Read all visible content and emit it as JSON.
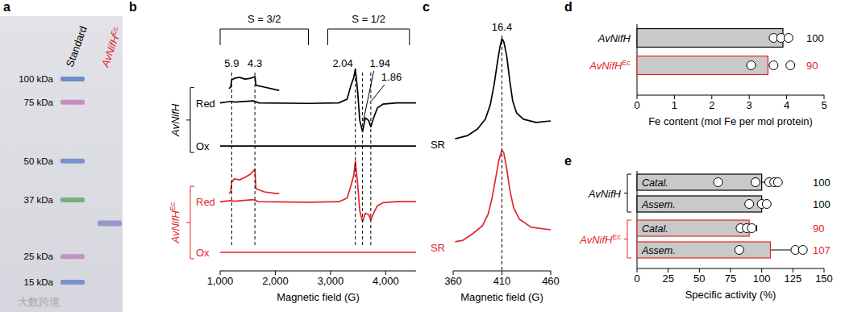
{
  "watermark": "大数跨境",
  "chart_data": [
    {
      "type": "gel",
      "panel": "a",
      "ylim": [
        0,
        1
      ],
      "tick_labels": false,
      "lanes": [
        {
          "text": "Standard",
          "color": "#000000"
        },
        {
          "text": "AvNifH",
          "sup": "Ec",
          "color": "#e3262b"
        }
      ],
      "markers": [
        {
          "label": "100 kDa",
          "rf": 0.218,
          "color": "#5b7fc6"
        },
        {
          "label": "75 kDa",
          "rf": 0.304,
          "color": "#c27cb9"
        },
        {
          "label": "50 kDa",
          "rf": 0.522,
          "color": "#6a86c8"
        },
        {
          "label": "37 kDa",
          "rf": 0.666,
          "color": "#6aa46c"
        },
        {
          "label": "25 kDa",
          "rf": 0.875,
          "color": "#c483bd"
        },
        {
          "label": "15 kDa",
          "rf": 0.97,
          "color": "#6a86c8"
        }
      ],
      "sample_band": {
        "rf": 0.752,
        "color": "#8d90cc"
      }
    },
    {
      "type": "line",
      "panel": "b",
      "x_label": "Magnetic field (G)",
      "xlim": [
        1000,
        4550
      ],
      "xticks": [
        {
          "value": 1000,
          "label": "1,000"
        },
        {
          "value": 2000,
          "label": "2,000"
        },
        {
          "value": 3000,
          "label": "3,000"
        },
        {
          "value": 4000,
          "label": "4,000"
        }
      ],
      "ylim": [
        0,
        100
      ],
      "tick_labels": "x",
      "brackets": [
        {
          "label": "S = 3/2",
          "from": 1000,
          "to": 2600
        },
        {
          "label": "S = 1/2",
          "from": 2950,
          "to": 4430
        }
      ],
      "g_values": [
        {
          "g": 5.9,
          "field": 1210
        },
        {
          "g": 4.3,
          "field": 1630
        },
        {
          "g": 2.04,
          "field": 3450
        },
        {
          "g": 1.94,
          "field": 3580
        },
        {
          "g": 1.86,
          "field": 3730
        }
      ],
      "samples": [
        {
          "name": {
            "text": "AvNifH"
          },
          "color": "#000000",
          "traces": [
            {
              "label": "Red",
              "x": [
                1000,
                1200,
                1260,
                1600,
                1700,
                2600,
                3150,
                3300,
                3370,
                3420,
                3450,
                3490,
                3530,
                3580,
                3630,
                3690,
                3730,
                3780,
                3850,
                3950,
                4200,
                4550
              ],
              "values": [
                67,
                67.6,
                67.3,
                67.8,
                67,
                66.8,
                67,
                68.5,
                74,
                77,
                80.5,
                72,
                60,
                55.5,
                61,
                60,
                57.5,
                61,
                65,
                66.5,
                67,
                67
              ]
            },
            {
              "label": "Ox",
              "x": [
                1000,
                4550
              ],
              "values": [
                49.8,
                49.8
              ]
            },
            {
              "x": [
                1160,
                1190,
                1210,
                1260,
                1350,
                1450,
                1550,
                1630,
                1650,
                1800,
                2000,
                2070
              ],
              "values": [
                72.7,
                73.3,
                76.2,
                76.8,
                77.2,
                76.5,
                76.8,
                77.5,
                74,
                73.3,
                72.3,
                72
              ]
            }
          ]
        },
        {
          "name": {
            "text": "AvNifH",
            "sup": "Ec"
          },
          "color": "#e3262b",
          "traces": [
            {
              "label": "Red",
              "x": [
                1000,
                1200,
                1260,
                1600,
                1700,
                2600,
                3150,
                3300,
                3370,
                3420,
                3450,
                3490,
                3530,
                3580,
                3630,
                3690,
                3730,
                3780,
                3850,
                3950,
                4200,
                4550
              ],
              "values": [
                27.6,
                28,
                27.8,
                28.4,
                27.6,
                27.4,
                27.6,
                29,
                34,
                38,
                43.7,
                35,
                24,
                19.6,
                23,
                22.5,
                20.3,
                23,
                26,
                27.2,
                27.6,
                27.6
              ]
            },
            {
              "label": "Ox",
              "x": [
                1000,
                4550
              ],
              "values": [
                7.4,
                7.4
              ]
            },
            {
              "x": [
                1160,
                1190,
                1210,
                1260,
                1350,
                1450,
                1550,
                1630,
                1650,
                1800,
                2000,
                2070
              ],
              "values": [
                30.9,
                31.5,
                35.4,
                36.7,
                36.3,
                37.3,
                38.6,
                40.5,
                32.8,
                31.5,
                30.9,
                30.9
              ]
            }
          ]
        }
      ]
    },
    {
      "type": "line",
      "panel": "c",
      "x_label": "Magnetic field (G)",
      "xlim": [
        360,
        460
      ],
      "xticks": [
        360,
        410,
        460
      ],
      "ylim": [
        0,
        100
      ],
      "tick_labels": "x",
      "g_values": [
        {
          "g": 16.4,
          "field": 410
        }
      ],
      "series": [
        {
          "label": "SR",
          "color": "#000000",
          "x": [
            362,
            375,
            385,
            393,
            398,
            402,
            405,
            408,
            410,
            412,
            415,
            418,
            421,
            425,
            432,
            445,
            460
          ],
          "values": [
            52.7,
            54,
            56.6,
            60.5,
            66.2,
            74.3,
            82.3,
            89.4,
            92.6,
            91.3,
            85.5,
            75.9,
            67.8,
            63,
            60.5,
            59.2,
            59.8
          ]
        },
        {
          "label": "SR",
          "color": "#e3262b",
          "x": [
            362,
            370,
            380,
            390,
            396,
            400,
            404,
            407,
            410,
            412,
            415,
            418,
            422,
            428,
            440,
            460
          ],
          "values": [
            11.6,
            12.2,
            14.8,
            18,
            22.8,
            29.3,
            37.9,
            44.4,
            48.2,
            46.9,
            40.5,
            32.5,
            25.1,
            20.6,
            17.4,
            16.4
          ]
        }
      ]
    },
    {
      "type": "bar",
      "panel": "d",
      "orientation": "horizontal",
      "x_label": "Fe content (mol Fe per mol protein)",
      "xlim": [
        0,
        5
      ],
      "xticks": [
        0,
        1,
        2,
        3,
        4,
        5
      ],
      "categories": [
        {
          "text": "AvNifH"
        },
        {
          "text": "AvNifH",
          "sup": "Ec"
        }
      ],
      "values": [
        3.9,
        3.5
      ],
      "colors": [
        "#000000",
        "#e3262b"
      ],
      "points": [
        [
          3.65,
          3.85,
          4.05
        ],
        [
          3.05,
          3.65,
          4.1
        ]
      ],
      "relative": [
        100,
        90
      ]
    },
    {
      "type": "bar",
      "panel": "e",
      "orientation": "horizontal",
      "x_label": "Specific activity (%)",
      "xlim": [
        0,
        150
      ],
      "xticks": [
        0,
        25,
        50,
        75,
        100,
        125,
        150
      ],
      "data_labels": true,
      "groups": [
        {
          "name": {
            "text": "AvNifH"
          },
          "color": "#000000",
          "categories": [
            "Catal.",
            "Assem."
          ],
          "values": [
            100,
            100
          ],
          "errors": [
            14,
            5
          ],
          "points": [
            [
              65,
              95,
              106,
              110,
              113
            ],
            [
              90,
              100,
              104
            ]
          ]
        },
        {
          "name": {
            "text": "AvNifH",
            "sup": "Ec"
          },
          "color": "#e3262b",
          "categories": [
            "Catal.",
            "Assem."
          ],
          "values": [
            90,
            107
          ],
          "errors": [
            6,
            24
          ],
          "points": [
            [
              83,
              88,
              92
            ],
            [
              82,
              127,
              133
            ]
          ]
        }
      ]
    }
  ]
}
